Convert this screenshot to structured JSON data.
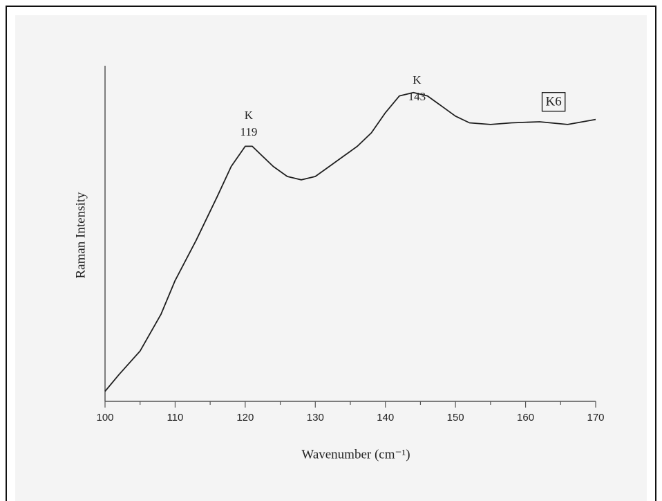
{
  "chart_data": {
    "type": "line",
    "xlabel": "Wavenumber (cm⁻¹)",
    "ylabel": "Raman Intensity",
    "color": "#1e1e1e",
    "x": [
      100,
      102,
      105,
      108,
      110,
      113,
      116,
      118,
      120,
      121,
      122,
      124,
      126,
      128,
      130,
      132,
      134,
      136,
      138,
      140,
      142,
      144,
      146,
      148,
      150,
      152,
      155,
      158,
      162,
      166,
      170
    ],
    "values": [
      3,
      8,
      15,
      26,
      36,
      48,
      61,
      70,
      76,
      76,
      74,
      70,
      67,
      66,
      67,
      70,
      73,
      76,
      80,
      86,
      91,
      92,
      91,
      88,
      85,
      83,
      82.5,
      83,
      83.3,
      82.5,
      84
    ],
    "xlim": [
      100,
      170
    ],
    "xticks": [
      100,
      110,
      120,
      130,
      140,
      150,
      160,
      170
    ],
    "xticks_minor": [
      105,
      115,
      125,
      135,
      145,
      155,
      165
    ],
    "ylim": [
      0,
      100
    ],
    "annotations": [
      {
        "lines": [
          "K",
          "119"
        ],
        "x": 120.5,
        "y": 80
      },
      {
        "lines": [
          "K",
          "143"
        ],
        "x": 144.5,
        "y": 90.5
      },
      {
        "text": "K6",
        "boxed": true,
        "x": 164,
        "y": 89
      }
    ]
  }
}
